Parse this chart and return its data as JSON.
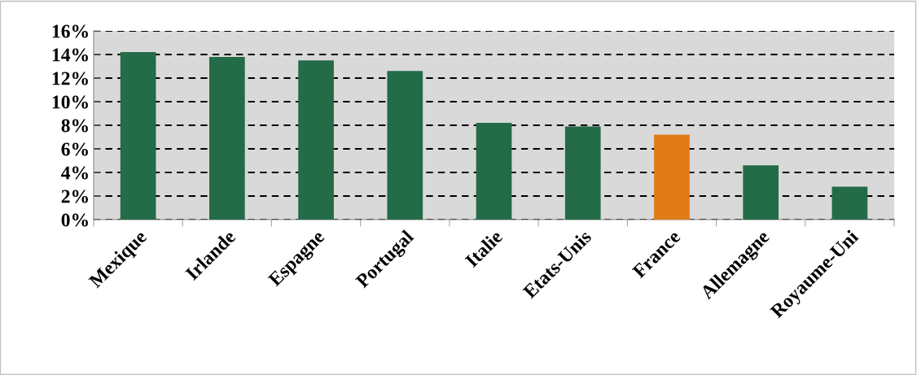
{
  "chart_data": {
    "type": "bar",
    "categories": [
      "Mexique",
      "Irlande",
      "Espagne",
      "Portugal",
      "Italie",
      "Etats-Unis",
      "France",
      "Allemagne",
      "Royaume-Uni"
    ],
    "values": [
      14.2,
      13.8,
      13.5,
      12.6,
      8.2,
      7.9,
      7.2,
      4.6,
      2.8
    ],
    "colors": [
      "#246b48",
      "#246b48",
      "#246b48",
      "#246b48",
      "#246b48",
      "#246b48",
      "#e07b18",
      "#246b48",
      "#246b48"
    ],
    "ylim": [
      0,
      16
    ],
    "yticks": [
      {
        "value": 0,
        "label": "0%"
      },
      {
        "value": 2,
        "label": "2%"
      },
      {
        "value": 4,
        "label": "4%"
      },
      {
        "value": 6,
        "label": "6%"
      },
      {
        "value": 8,
        "label": "8%"
      },
      {
        "value": 10,
        "label": "10%"
      },
      {
        "value": 12,
        "label": "12%"
      },
      {
        "value": 14,
        "label": "14%"
      },
      {
        "value": 16,
        "label": "16%"
      }
    ],
    "grid": "y",
    "line_style": "dashed"
  }
}
